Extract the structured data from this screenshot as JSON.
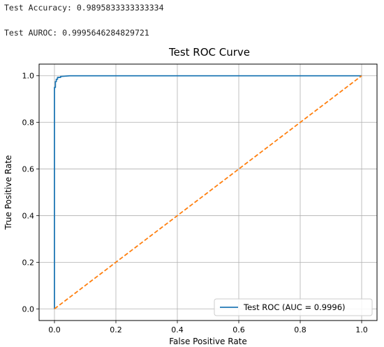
{
  "output": {
    "accuracy_label": "Test Accuracy:",
    "accuracy_value": "0.9895833333333334",
    "auroc_label": "Test AUROC:",
    "auroc_value": "0.9995646284829721"
  },
  "chart_data": {
    "type": "line",
    "title": "Test ROC Curve",
    "xlabel": "False Positive Rate",
    "ylabel": "True Positive Rate",
    "xlim": [
      -0.05,
      1.05
    ],
    "ylim": [
      -0.05,
      1.05
    ],
    "xticks": [
      0.0,
      0.2,
      0.4,
      0.6,
      0.8,
      1.0
    ],
    "yticks": [
      0.0,
      0.2,
      0.4,
      0.6,
      0.8,
      1.0
    ],
    "xtick_labels": [
      "0.0",
      "0.2",
      "0.4",
      "0.6",
      "0.8",
      "1.0"
    ],
    "ytick_labels": [
      "0.0",
      "0.2",
      "0.4",
      "0.6",
      "0.8",
      "1.0"
    ],
    "grid": true,
    "legend_position": "lower-right",
    "series": [
      {
        "name": "Test ROC (AUC = 0.9996)",
        "color": "#1f77b4",
        "style": "solid",
        "x": [
          0.0,
          0.0,
          0.003,
          0.003,
          0.006,
          0.006,
          0.01,
          0.01,
          0.02,
          0.02,
          0.05,
          1.0
        ],
        "y": [
          0.0,
          0.95,
          0.95,
          0.975,
          0.975,
          0.985,
          0.985,
          0.993,
          0.993,
          0.997,
          1.0,
          1.0
        ]
      },
      {
        "name": "",
        "color": "#ff7f0e",
        "style": "dashed",
        "x": [
          0.0,
          1.0
        ],
        "y": [
          0.0,
          1.0
        ]
      }
    ]
  }
}
